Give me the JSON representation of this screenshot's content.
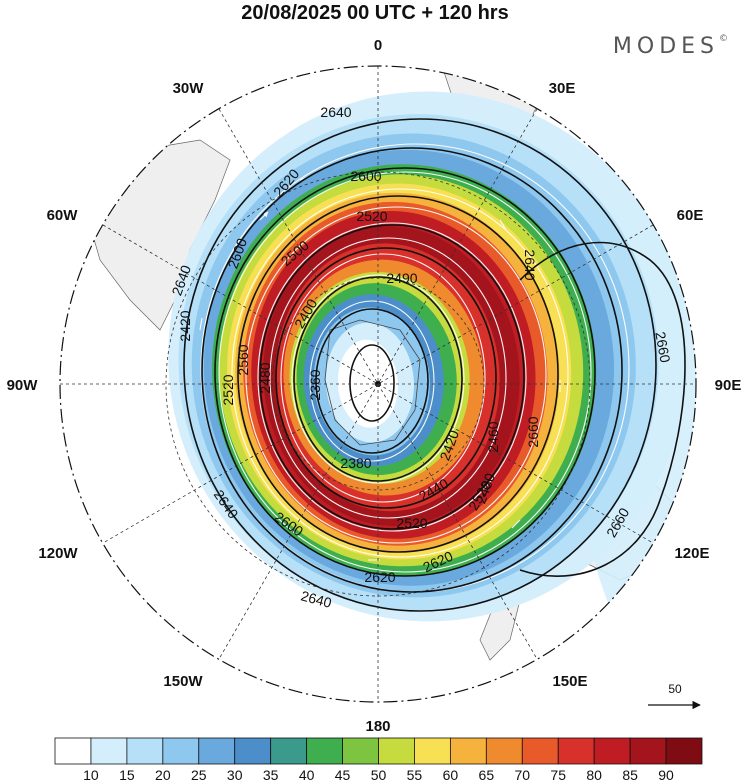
{
  "title": "20/08/2025  00 UTC  + 120 hrs",
  "brand": "MODES",
  "brand_mark": "©",
  "map": {
    "projection": "south polar stereographic",
    "field": "wind speed (shaded) with geopotential height contours",
    "longitude_labels": [
      "0",
      "30E",
      "60E",
      "90E",
      "120E",
      "150E",
      "180",
      "150W",
      "120W",
      "90W",
      "60W",
      "30W"
    ]
  },
  "contours": {
    "labels": [
      "2640",
      "2640",
      "2620",
      "2600",
      "2600",
      "2520",
      "2500",
      "2490",
      "2420",
      "2400",
      "2420",
      "2380",
      "2360",
      "2560",
      "2520",
      "2480",
      "2640",
      "2660",
      "2660",
      "2660",
      "2440",
      "2460",
      "2480",
      "2520",
      "2600",
      "2620",
      "2620",
      "2640",
      "2640",
      "2520"
    ]
  },
  "reference_vector": {
    "value": "50"
  },
  "colorbar": {
    "ticks": [
      "10",
      "15",
      "20",
      "25",
      "30",
      "35",
      "40",
      "45",
      "50",
      "55",
      "60",
      "65",
      "70",
      "75",
      "80",
      "85",
      "90"
    ],
    "colors": [
      "#ffffff",
      "#d4eefc",
      "#b5e0f8",
      "#8fc8ef",
      "#6aa9de",
      "#4b8ec9",
      "#3a9a8c",
      "#3fae4f",
      "#7dc441",
      "#c6dc3e",
      "#f7e054",
      "#f5b23c",
      "#f08a2e",
      "#e85a2a",
      "#d8302a",
      "#c01c24",
      "#a3141c",
      "#7f0c13"
    ]
  }
}
